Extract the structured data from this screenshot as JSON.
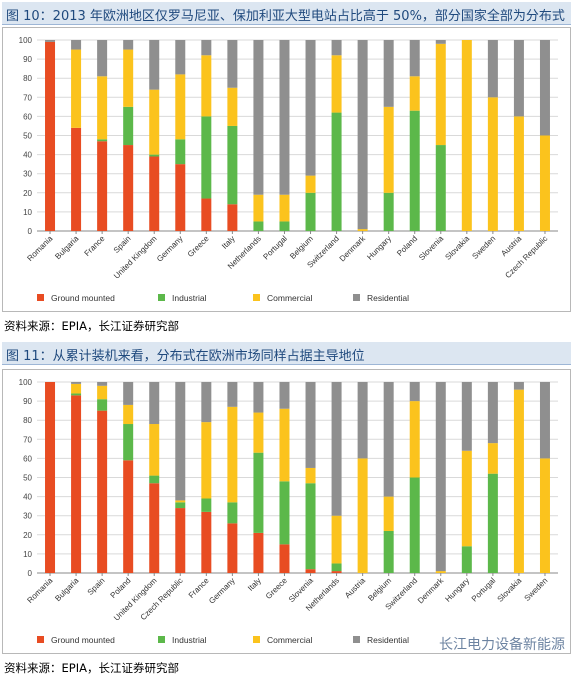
{
  "fig10": {
    "title": "图 10：2013 年欧洲地区仅罗马尼亚、保加利亚大型电站占比高于 50%，部分国家全部为分布式",
    "source": "资料来源：EPIA，长江证券研究部",
    "chart_data": {
      "type": "bar",
      "stacked": true,
      "ylim": [
        0,
        100
      ],
      "yticks": [
        0,
        10,
        20,
        30,
        40,
        50,
        60,
        70,
        80,
        90,
        100
      ],
      "grid": true,
      "legend_position": "bottom",
      "categories": [
        "Romania",
        "Bulgaria",
        "France",
        "Spain",
        "United Kingdom",
        "Germany",
        "Greece",
        "Italy",
        "Netherlands",
        "Portugal",
        "Belgium",
        "Switzerland",
        "Denmark",
        "Hungary",
        "Poland",
        "Slovenia",
        "Slovakia",
        "Sweden",
        "Austria",
        "Czech Republic"
      ],
      "series": [
        {
          "name": "Ground mounted",
          "color": "#e84c22",
          "values": [
            99,
            54,
            47,
            45,
            39,
            35,
            17,
            14,
            0,
            0,
            0,
            0,
            0,
            0,
            0,
            0,
            0,
            0,
            0,
            0
          ]
        },
        {
          "name": "Industrial",
          "color": "#5cb84a",
          "values": [
            0,
            0,
            1,
            20,
            1,
            13,
            43,
            41,
            5,
            5,
            20,
            62,
            0,
            20,
            63,
            45,
            0,
            0,
            0,
            0
          ]
        },
        {
          "name": "Commercial",
          "color": "#fbc31d",
          "values": [
            0,
            41,
            33,
            30,
            34,
            34,
            32,
            20,
            14,
            14,
            9,
            30,
            1,
            45,
            18,
            53,
            100,
            70,
            60,
            50
          ]
        },
        {
          "name": "Residential",
          "color": "#8f8f8f",
          "values": [
            1,
            5,
            19,
            5,
            26,
            18,
            8,
            25,
            81,
            81,
            71,
            8,
            99,
            35,
            19,
            2,
            0,
            30,
            40,
            50
          ]
        }
      ]
    }
  },
  "fig11": {
    "title": "图 11：从累计装机来看，分布式在欧洲市场同样占据主导地位",
    "source": "资料来源：EPIA，长江证券研究部",
    "chart_data": {
      "type": "bar",
      "stacked": true,
      "ylim": [
        0,
        100
      ],
      "yticks": [
        0,
        10,
        20,
        30,
        40,
        50,
        60,
        70,
        80,
        90,
        100
      ],
      "grid": true,
      "legend_position": "bottom",
      "categories": [
        "Romania",
        "Bulgaria",
        "Spain",
        "Poland",
        "United Kingdom",
        "Czech Republic",
        "France",
        "Germany",
        "Italy",
        "Greece",
        "Slovenia",
        "Netherlands",
        "Austria",
        "Belgium",
        "Switzerland",
        "Denmark",
        "Hungary",
        "Portugal",
        "Slovakia",
        "Sweden"
      ],
      "series": [
        {
          "name": "Ground mounted",
          "color": "#e84c22",
          "values": [
            100,
            93,
            85,
            59,
            47,
            34,
            32,
            26,
            21,
            15,
            2,
            1,
            0,
            0,
            0,
            0,
            0,
            0,
            0,
            0
          ]
        },
        {
          "name": "Industrial",
          "color": "#5cb84a",
          "values": [
            0,
            1,
            6,
            19,
            4,
            3,
            7,
            11,
            42,
            33,
            45,
            4,
            0,
            22,
            50,
            0,
            14,
            52,
            0,
            0
          ]
        },
        {
          "name": "Commercial",
          "color": "#fbc31d",
          "values": [
            0,
            5,
            7,
            10,
            27,
            1,
            40,
            50,
            21,
            38,
            8,
            25,
            60,
            18,
            40,
            1,
            50,
            16,
            96,
            60
          ]
        },
        {
          "name": "Residential",
          "color": "#8f8f8f",
          "values": [
            0,
            1,
            2,
            12,
            22,
            62,
            21,
            13,
            16,
            14,
            45,
            70,
            40,
            60,
            10,
            99,
            36,
            32,
            4,
            40
          ]
        }
      ]
    }
  },
  "watermark": "长江电力设备新能源"
}
